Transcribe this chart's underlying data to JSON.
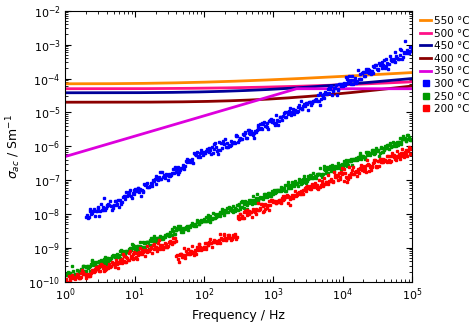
{
  "xlabel": "Frequency / Hz",
  "xlim": [
    1.0,
    100000.0
  ],
  "ylim": [
    1e-10,
    0.01
  ],
  "legend_labels": [
    "550 °C",
    "500 °C",
    "450 °C",
    "400 °C",
    "350 °C",
    "300 °C",
    "250 °C",
    "200 °C"
  ],
  "colors": [
    "#FF8800",
    "#FF1188",
    "#000099",
    "#8B0000",
    "#DD00DD",
    "#0000FF",
    "#009900",
    "#FF0000"
  ],
  "figsize": [
    4.74,
    3.26
  ],
  "dpi": 100
}
